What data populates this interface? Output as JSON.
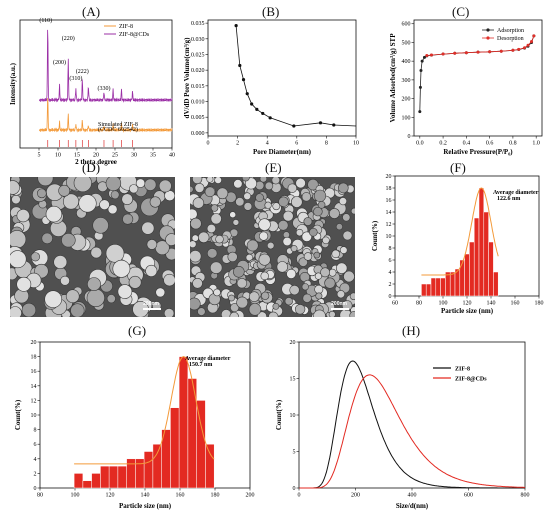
{
  "figure": {
    "A": {
      "label": "(A)",
      "xlabel": "2 theta degree",
      "ylabel": "Intensity(a.u.)",
      "xticks": [
        "5",
        "10",
        "15",
        "20",
        "25",
        "30",
        "35",
        "40"
      ],
      "legend": [
        "ZIF-8",
        "ZIF-8@CDs"
      ],
      "peak_labels": [
        "(110)",
        "(200)",
        "(220)",
        "(310)",
        "(222)",
        "(330)"
      ],
      "reference_label": "Simulated ZIF-8",
      "reference_sub": "(CCDC 602542)"
    },
    "B": {
      "label": "(B)",
      "xlabel": "Pore Diameter(nm)",
      "ylabel": "dV/dD Pore Volume(cm³/g)"
    },
    "C": {
      "label": "(C)",
      "xlabel": "Relative Pressure(P/P₀)",
      "ylabel": "Volume Adsorbed(cm³/g) STP"
    },
    "D": {
      "label": "(D)",
      "scale": "200nm"
    },
    "E": {
      "label": "(E)",
      "scale": "200nm"
    },
    "F": {
      "label": "(F)",
      "annotation_title": "Average diameter",
      "annotation_value": "122.6 nm"
    },
    "G": {
      "label": "(G)",
      "annotation_title": "Average diameter",
      "annotation_value": "150.7 nm"
    },
    "H": {
      "label": "(H)"
    }
  },
  "chart_data": [
    {
      "panel": "A",
      "type": "line",
      "xlabel": "2 theta degree",
      "ylabel": "Intensity(a.u.)",
      "xlim": [
        0,
        40
      ],
      "series": [
        {
          "name": "ZIF-8",
          "color": "#f39a3a",
          "peaks": [
            [
              7.3,
              0.35
            ],
            [
              10.4,
              0.08
            ],
            [
              12.7,
              0.15
            ],
            [
              14.7,
              0.06
            ],
            [
              16.4,
              0.09
            ],
            [
              18.0,
              0.05
            ],
            [
              22.1,
              0.04
            ],
            [
              24.5,
              0.05
            ],
            [
              26.7,
              0.06
            ],
            [
              29.6,
              0.05
            ]
          ]
        },
        {
          "name": "ZIF-8@CDs",
          "color": "#9b2fa6",
          "peaks": [
            [
              7.3,
              0.75
            ],
            [
              10.4,
              0.15
            ],
            [
              12.7,
              0.4
            ],
            [
              14.7,
              0.12
            ],
            [
              16.4,
              0.2
            ],
            [
              18.0,
              0.14
            ],
            [
              22.1,
              0.08
            ],
            [
              24.5,
              0.1
            ],
            [
              26.7,
              0.1
            ],
            [
              29.6,
              0.08
            ]
          ]
        }
      ]
    },
    {
      "panel": "B",
      "type": "line",
      "xlabel": "Pore Diameter(nm)",
      "ylabel": "dV/dD Pore Volume(cm³/g)",
      "xlim": [
        0,
        10
      ],
      "ylim": [
        -0.001,
        0.036
      ],
      "xticks": [
        0,
        2,
        4,
        6,
        8,
        10
      ],
      "yticks": [
        0.0,
        0.005,
        0.01,
        0.015,
        0.02,
        0.025,
        0.03,
        0.035
      ],
      "series": [
        {
          "x": [
            1.9,
            2.15,
            2.4,
            2.65,
            2.95,
            3.3,
            3.7,
            4.2,
            5.8,
            7.6,
            8.5,
            10.0
          ],
          "y": [
            0.0342,
            0.0215,
            0.017,
            0.0125,
            0.0092,
            0.0075,
            0.0062,
            0.0048,
            0.0022,
            0.0032,
            0.0025,
            0.0022
          ]
        }
      ]
    },
    {
      "panel": "C",
      "type": "line",
      "xlabel": "Relative Pressure(P/P₀)",
      "ylabel": "Volume Adsorbed(cm³/g) STP",
      "xlim": [
        0,
        1.0
      ],
      "ylim": [
        0,
        600
      ],
      "xticks": [
        0.0,
        0.2,
        0.4,
        0.6,
        0.8,
        1.0
      ],
      "yticks": [
        0,
        100,
        200,
        300,
        400,
        500,
        600
      ],
      "series": [
        {
          "name": "Adsorption",
          "color": "#222222",
          "x": [
            0.0,
            0.005,
            0.01,
            0.02,
            0.04,
            0.06,
            0.1,
            0.2,
            0.3,
            0.4,
            0.5,
            0.6,
            0.7,
            0.8,
            0.85,
            0.9,
            0.93,
            0.96,
            0.98
          ],
          "y": [
            130,
            260,
            350,
            400,
            420,
            428,
            432,
            438,
            442,
            445,
            448,
            450,
            453,
            458,
            462,
            470,
            480,
            500,
            535
          ]
        },
        {
          "name": "Desorption",
          "color": "#e0302a",
          "x": [
            0.98,
            0.96,
            0.93,
            0.9,
            0.85,
            0.8,
            0.7,
            0.6,
            0.5,
            0.4,
            0.3,
            0.2,
            0.1,
            0.06
          ],
          "y": [
            535,
            505,
            485,
            472,
            463,
            458,
            453,
            450,
            448,
            445,
            442,
            438,
            433,
            430
          ]
        }
      ]
    },
    {
      "panel": "F",
      "type": "bar",
      "xlabel": "Particle size (nm)",
      "ylabel": "Count(%)",
      "xlim": [
        60,
        180
      ],
      "ylim": [
        0,
        20
      ],
      "xticks": [
        60,
        80,
        100,
        120,
        140,
        160,
        180
      ],
      "yticks": [
        0,
        2,
        4,
        6,
        8,
        10,
        12,
        14,
        16,
        18,
        20
      ],
      "bin_width": 4,
      "bins": [
        84,
        88,
        92,
        96,
        100,
        104,
        108,
        112,
        116,
        120,
        124,
        128,
        132,
        136,
        140,
        144
      ],
      "values": [
        2,
        2,
        3,
        3,
        3,
        4,
        4,
        4.5,
        6,
        7,
        9,
        13,
        18,
        14,
        9,
        4
      ],
      "fit_color": "#f39a3a",
      "bar_color": "#e32a22"
    },
    {
      "panel": "G",
      "type": "bar",
      "xlabel": "Particle size (nm)",
      "ylabel": "Count(%)",
      "xlim": [
        80,
        200
      ],
      "ylim": [
        0,
        20
      ],
      "xticks": [
        80,
        100,
        120,
        140,
        160,
        180,
        200
      ],
      "yticks": [
        0,
        2,
        4,
        6,
        8,
        10,
        12,
        14,
        16,
        18,
        20
      ],
      "bin_width": 5,
      "bins": [
        102,
        107,
        112,
        117,
        122,
        127,
        132,
        137,
        142,
        147,
        152,
        157,
        162,
        167,
        172,
        177
      ],
      "values": [
        2,
        1,
        2,
        3,
        3,
        3,
        4,
        4,
        5,
        6,
        8,
        11,
        18,
        15,
        12,
        6
      ],
      "fit_color": "#f39a3a",
      "bar_color": "#e32a22"
    },
    {
      "panel": "H",
      "type": "line",
      "xlabel": "Size/d(nm)",
      "ylabel": "Count(%)",
      "xlim": [
        0,
        800
      ],
      "ylim": [
        0,
        20
      ],
      "xticks": [
        0,
        200,
        400,
        600,
        800
      ],
      "yticks": [
        0,
        5,
        10,
        15,
        20
      ],
      "series": [
        {
          "name": "ZIF-8",
          "color": "#111111",
          "peak_x": 190,
          "peak_y": 17.4,
          "sigma": 0.33
        },
        {
          "name": "ZIF-8@CDs",
          "color": "#e32a22",
          "peak_x": 250,
          "peak_y": 15.5,
          "sigma": 0.36
        }
      ]
    }
  ]
}
